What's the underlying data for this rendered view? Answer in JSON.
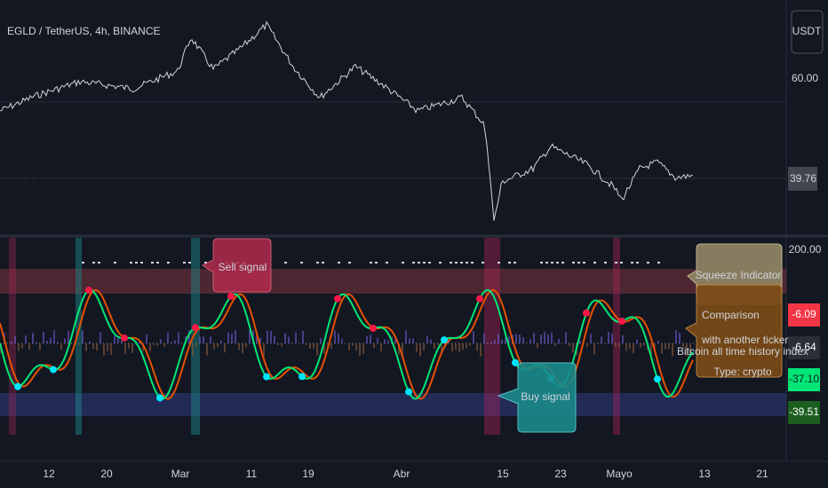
{
  "header": {
    "symbol": "EGLD / TetherUS, 4h, BINANCE",
    "currency": "USDT"
  },
  "price_axis": {
    "label": "60.00",
    "last_price": "39.76"
  },
  "indicator_axis": {
    "label": "200.00",
    "badges": [
      "-6.09",
      "-6.64",
      "-37.10",
      "-39.51"
    ]
  },
  "time_axis": [
    "12",
    "20",
    "Mar",
    "11",
    "19",
    "Abr",
    "15",
    "23",
    "Mayo",
    "13",
    "21"
  ],
  "callouts": {
    "sell": "Sell signal",
    "buy": "Buy signal",
    "squeeze": "Squeeze Indicator",
    "comparison": [
      "Comparison",
      "with another ticker"
    ],
    "comparison_note": "Bitcoin all time history index",
    "comparison_type": "Type: crypto"
  }
}
